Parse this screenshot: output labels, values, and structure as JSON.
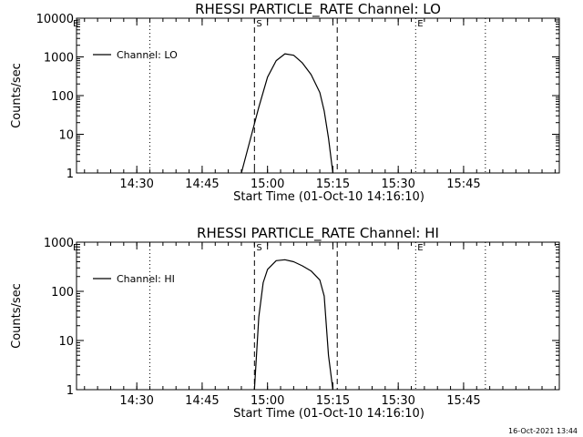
{
  "footer_timestamp": "16-Oct-2021 13:44",
  "chart_data": [
    {
      "type": "line",
      "title": "RHESSI PARTICLE_RATE Channel: LO",
      "xlabel": "Start Time (01-Oct-10 14:16:10)",
      "ylabel": "Counts/sec",
      "yscale": "log",
      "ylim": [
        1,
        10000
      ],
      "xlim_minutes_after_start": [
        0,
        110.8
      ],
      "x_ticks": [
        "14:30",
        "14:45",
        "15:00",
        "15:15",
        "15:30",
        "15:45"
      ],
      "y_ticks": [
        "1",
        "10",
        "100",
        "1000",
        "10000"
      ],
      "legend": "Channel: LO",
      "legend_position": "top-left",
      "series": [
        {
          "name": "Channel: LO",
          "x_time": [
            "14:54",
            "14:56",
            "14:58",
            "15:00",
            "15:02",
            "15:04",
            "15:06",
            "15:08",
            "15:10",
            "15:12",
            "15:13",
            "15:14",
            "15:15"
          ],
          "values": [
            1.0,
            7.0,
            50,
            300,
            800,
            1200,
            1100,
            700,
            350,
            120,
            40,
            8,
            1.0
          ]
        }
      ],
      "vertical_markers": [
        {
          "time": "14:33",
          "style": "dotted",
          "label": ""
        },
        {
          "time": "14:57",
          "style": "dashed",
          "label": "S"
        },
        {
          "time": "15:16",
          "style": "dashed",
          "label": ""
        },
        {
          "time": "15:34",
          "style": "dotted",
          "label": "E"
        },
        {
          "time": "15:50",
          "style": "dotted",
          "label": ""
        }
      ],
      "corner_label": "E"
    },
    {
      "type": "line",
      "title": "RHESSI PARTICLE_RATE Channel: HI",
      "xlabel": "Start Time (01-Oct-10 14:16:10)",
      "ylabel": "Counts/sec",
      "yscale": "log",
      "ylim": [
        1,
        1000
      ],
      "xlim_minutes_after_start": [
        0,
        110.8
      ],
      "x_ticks": [
        "14:30",
        "14:45",
        "15:00",
        "15:15",
        "15:30",
        "15:45"
      ],
      "y_ticks": [
        "1",
        "10",
        "100",
        "1000"
      ],
      "legend": "Channel: HI",
      "legend_position": "top-left",
      "series": [
        {
          "name": "Channel: HI",
          "x_time": [
            "14:57",
            "14:58",
            "14:59",
            "15:00",
            "15:02",
            "15:04",
            "15:06",
            "15:08",
            "15:10",
            "15:12",
            "15:13",
            "15:14",
            "15:15"
          ],
          "values": [
            1.0,
            30,
            150,
            280,
            420,
            440,
            400,
            330,
            260,
            170,
            80,
            5,
            1.0
          ]
        }
      ],
      "vertical_markers": [
        {
          "time": "14:33",
          "style": "dotted",
          "label": ""
        },
        {
          "time": "14:57",
          "style": "dashed",
          "label": "S"
        },
        {
          "time": "15:16",
          "style": "dashed",
          "label": ""
        },
        {
          "time": "15:34",
          "style": "dotted",
          "label": "E"
        },
        {
          "time": "15:50",
          "style": "dotted",
          "label": ""
        }
      ],
      "corner_label": "E"
    }
  ]
}
